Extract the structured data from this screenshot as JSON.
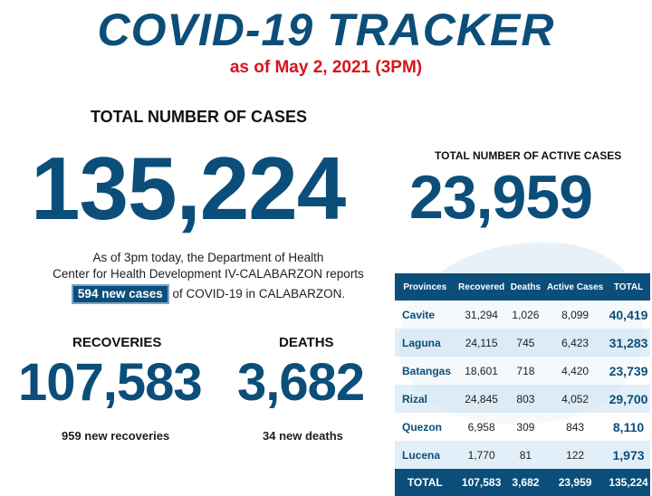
{
  "header": {
    "title": "COVID-19 TRACKER",
    "as_of": "as of May 2, 2021 (3PM)"
  },
  "total_cases": {
    "label": "TOTAL NUMBER OF CASES",
    "value": "135,224"
  },
  "active_cases": {
    "label": "TOTAL NUMBER OF ACTIVE CASES",
    "value": "23,959"
  },
  "report": {
    "line1": "As of 3pm today, the Department of Health",
    "line2": "Center for Health Development IV-CALABARZON reports",
    "new_cases": "594 new cases",
    "line3": "of COVID-19 in CALABARZON."
  },
  "recoveries": {
    "label": "RECOVERIES",
    "value": "107,583",
    "note": "959 new recoveries"
  },
  "deaths": {
    "label": "DEATHS",
    "value": "3,682",
    "note": "34 new deaths"
  },
  "table": {
    "headers": [
      "Provinces",
      "Recovered",
      "Deaths",
      "Active Cases",
      "TOTAL"
    ],
    "rows": [
      [
        "Cavite",
        "31,294",
        "1,026",
        "8,099",
        "40,419"
      ],
      [
        "Laguna",
        "24,115",
        "745",
        "6,423",
        "31,283"
      ],
      [
        "Batangas",
        "18,601",
        "718",
        "4,420",
        "23,739"
      ],
      [
        "Rizal",
        "24,845",
        "803",
        "4,052",
        "29,700"
      ],
      [
        "Quezon",
        "6,958",
        "309",
        "843",
        "8,110"
      ],
      [
        "Lucena",
        "1,770",
        "81",
        "122",
        "1,973"
      ]
    ],
    "total": [
      "TOTAL",
      "107,583",
      "3,682",
      "23,959",
      "135,224"
    ]
  },
  "colors": {
    "brand_blue": "#0c4e7a",
    "accent_red": "#d7141a"
  }
}
